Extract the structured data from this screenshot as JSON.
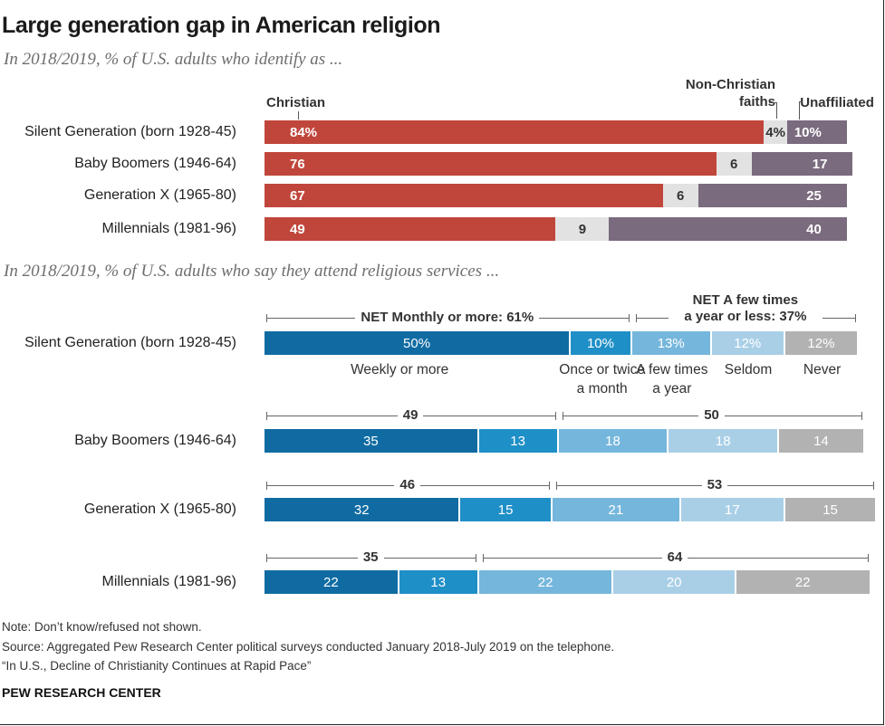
{
  "title": "Large generation gap in American religion",
  "subtitle1": "In 2018/2019, % of U.S. adults who identify as ...",
  "subtitle2": "In 2018/2019, % of U.S. adults who say they attend religious services ...",
  "note": "Note: Don’t know/refused not shown.",
  "source": "Source: Aggregated Pew Research Center political surveys conducted January 2018-July 2019 on the telephone.",
  "report": "“In U.S., Decline of Christianity Continues at Rapid Pace”",
  "brand": "PEW RESEARCH CENTER",
  "chart_data": [
    {
      "type": "bar",
      "orientation": "horizontal",
      "stacked": true,
      "categories": [
        "Silent Generation (born 1928-45)",
        "Baby Boomers (1946-64)",
        "Generation X (1965-80)",
        "Millennials (1981-96)"
      ],
      "series": [
        {
          "name": "Christian",
          "values": [
            84,
            76,
            67,
            49
          ],
          "labels": [
            "84%",
            "76",
            "67",
            "49"
          ],
          "color": "#c0463b"
        },
        {
          "name": "Non-Christian faiths",
          "values": [
            4,
            6,
            6,
            9
          ],
          "labels": [
            "4%",
            "6",
            "6",
            "9"
          ],
          "color": "#e2e2e2"
        },
        {
          "name": "Unaffiliated",
          "values": [
            10,
            17,
            25,
            40
          ],
          "labels": [
            "10%",
            "17",
            "25",
            "40"
          ],
          "color": "#7a6b7e"
        }
      ],
      "header_lines": {
        "Christian": [
          "Christian"
        ],
        "Non-Christian faiths": [
          "Non-Christian",
          "faiths"
        ],
        "Unaffiliated": [
          "Unaffiliated"
        ]
      }
    },
    {
      "type": "bar",
      "orientation": "horizontal",
      "stacked": true,
      "categories": [
        "Silent Generation (born 1928-45)",
        "Baby Boomers (1946-64)",
        "Generation X (1965-80)",
        "Millennials (1981-96)"
      ],
      "series": [
        {
          "name": "Weekly or more",
          "values": [
            50,
            35,
            32,
            22
          ],
          "labels": [
            "50%",
            "35",
            "32",
            "22"
          ],
          "color": "#0f6ba2"
        },
        {
          "name": "Once or twice a month",
          "values": [
            10,
            13,
            15,
            13
          ],
          "labels": [
            "10%",
            "13",
            "15",
            "13"
          ],
          "color": "#1f8fc7"
        },
        {
          "name": "A few times a year",
          "values": [
            13,
            18,
            21,
            22
          ],
          "labels": [
            "13%",
            "18",
            "21",
            "22"
          ],
          "color": "#75b6dc"
        },
        {
          "name": "Seldom",
          "values": [
            12,
            18,
            17,
            20
          ],
          "labels": [
            "12%",
            "18",
            "17",
            "20"
          ],
          "color": "#a9cfe7"
        },
        {
          "name": "Never",
          "values": [
            12,
            14,
            15,
            22
          ],
          "labels": [
            "12%",
            "14",
            "15",
            "22"
          ],
          "color": "#b2b2b2"
        }
      ],
      "category_lines": [
        [
          "Weekly or more"
        ],
        [
          "Once or twice",
          "a month"
        ],
        [
          "A few times",
          "a year"
        ],
        [
          "Seldom"
        ],
        [
          "Never"
        ]
      ],
      "nets": [
        {
          "name": "NET Monthly or more",
          "labels": [
            "NET Monthly or more: 61%",
            "49",
            "46",
            "35"
          ],
          "values": [
            61,
            49,
            46,
            35
          ]
        },
        {
          "name": "NET A few times a year or less",
          "labels": [
            "NET A few times a year or less: 37%",
            "50",
            "53",
            "64"
          ],
          "label_lines_first": [
            "NET A few times",
            "a year or less: 37%"
          ],
          "values": [
            37,
            50,
            53,
            64
          ]
        }
      ]
    }
  ]
}
